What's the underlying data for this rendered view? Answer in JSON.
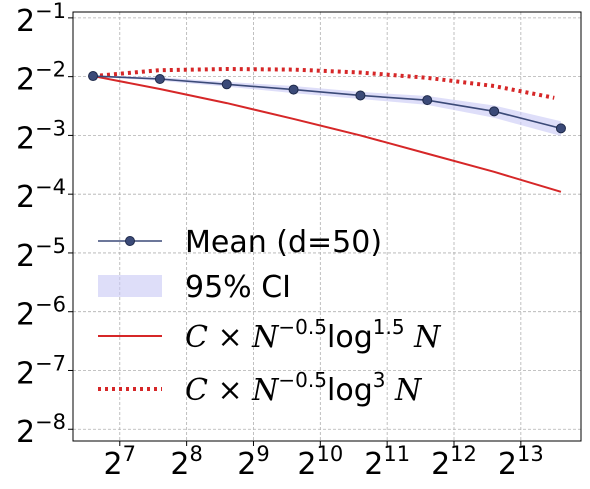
{
  "chart_data": {
    "type": "line",
    "x_scale": "log2",
    "y_scale": "log2",
    "xlim_exp": [
      6.3,
      13.9
    ],
    "ylim_exp": [
      -8.2,
      -0.9
    ],
    "x_ticks": [
      {
        "base": "2",
        "exp": "7",
        "value_exp": 7
      },
      {
        "base": "2",
        "exp": "8",
        "value_exp": 8
      },
      {
        "base": "2",
        "exp": "9",
        "value_exp": 9
      },
      {
        "base": "2",
        "exp": "10",
        "value_exp": 10
      },
      {
        "base": "2",
        "exp": "11",
        "value_exp": 11
      },
      {
        "base": "2",
        "exp": "12",
        "value_exp": 12
      },
      {
        "base": "2",
        "exp": "13",
        "value_exp": 13
      }
    ],
    "y_ticks": [
      {
        "base": "2",
        "exp": "−1",
        "value_exp": -1
      },
      {
        "base": "2",
        "exp": "−2",
        "value_exp": -2
      },
      {
        "base": "2",
        "exp": "−3",
        "value_exp": -3
      },
      {
        "base": "2",
        "exp": "−4",
        "value_exp": -4
      },
      {
        "base": "2",
        "exp": "−5",
        "value_exp": -5
      },
      {
        "base": "2",
        "exp": "−6",
        "value_exp": -6
      },
      {
        "base": "2",
        "exp": "−7",
        "value_exp": -7
      },
      {
        "base": "2",
        "exp": "−8",
        "value_exp": -8
      }
    ],
    "grid": true,
    "legend_position": "lower-left",
    "series": [
      {
        "name": "Mean (d=50)",
        "style": "line-markers",
        "color": "#3b4a78",
        "x_exp": [
          6.6,
          7.6,
          8.6,
          9.6,
          10.6,
          11.6,
          12.6,
          13.6
        ],
        "y_exp": [
          -1.99,
          -2.04,
          -2.13,
          -2.22,
          -2.32,
          -2.4,
          -2.59,
          -2.88
        ],
        "ci_low_exp": [
          -2.0,
          -2.07,
          -2.17,
          -2.28,
          -2.38,
          -2.48,
          -2.7,
          -3.01
        ],
        "ci_high_exp": [
          -1.98,
          -2.01,
          -2.09,
          -2.16,
          -2.26,
          -2.33,
          -2.49,
          -2.76
        ]
      },
      {
        "name": "95% CI",
        "style": "band",
        "color": "#c8c8f5"
      },
      {
        "name_parts": {
          "pre": "C × N",
          "sup1": "−0.5",
          "mid": "log",
          "sup2": "1.5",
          "post": "N"
        },
        "style": "solid",
        "color": "#d62728",
        "x_exp": [
          6.6,
          7.6,
          8.6,
          9.6,
          10.6,
          11.6,
          12.6,
          13.6
        ],
        "y_exp": [
          -1.99,
          -2.21,
          -2.45,
          -2.72,
          -3.0,
          -3.31,
          -3.62,
          -3.96
        ]
      },
      {
        "name_parts": {
          "pre": "C × N",
          "sup1": "−0.5",
          "mid": "log",
          "sup2": "3",
          "post": "N"
        },
        "style": "dotted",
        "color": "#d62728",
        "x_exp": [
          6.6,
          7.6,
          8.6,
          9.6,
          10.6,
          11.6,
          12.6,
          13.5
        ],
        "y_exp": [
          -1.99,
          -1.89,
          -1.87,
          -1.88,
          -1.93,
          -2.02,
          -2.16,
          -2.36
        ]
      }
    ]
  }
}
